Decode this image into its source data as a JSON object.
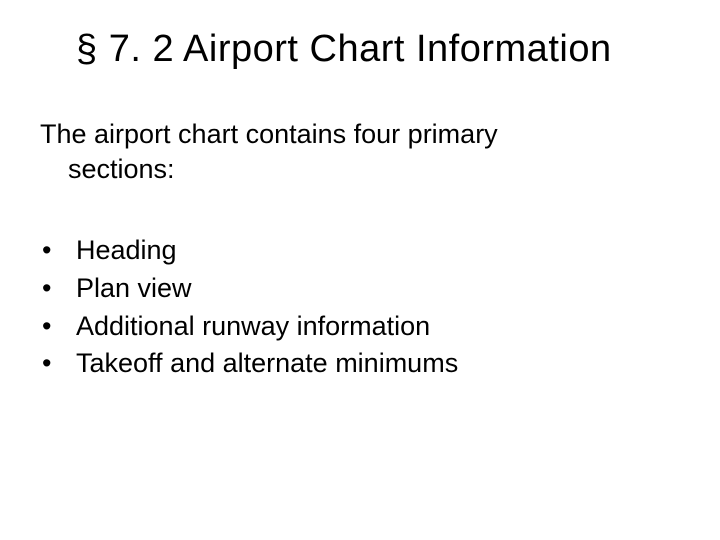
{
  "title": "§ 7. 2 Airport Chart Information",
  "intro_line1": "The airport chart contains four primary",
  "intro_line2": "sections:",
  "bullets": {
    "0": "Heading",
    "1": "Plan view",
    "2": "Additional runway information",
    "3": "Takeoff and alternate minimums"
  },
  "styling": {
    "background_color": "#ffffff",
    "text_color": "#000000",
    "title_fontsize": 38,
    "body_fontsize": 27,
    "font_family": "Arial",
    "bullet_marker": "•"
  }
}
